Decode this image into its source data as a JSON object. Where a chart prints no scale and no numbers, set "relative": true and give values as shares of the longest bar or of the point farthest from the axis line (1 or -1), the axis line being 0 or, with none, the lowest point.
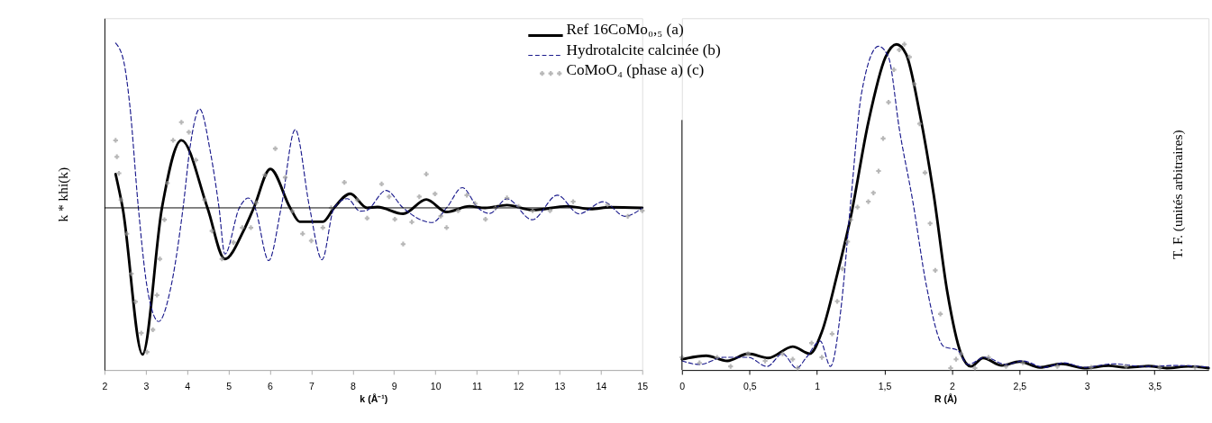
{
  "chart_data": [
    {
      "type": "line",
      "relative": true,
      "xlabel": "k (Å⁻¹)",
      "ylabel": "k * khi(k)",
      "xlim": [
        2,
        15
      ],
      "xticks": [
        2,
        3,
        4,
        5,
        6,
        7,
        8,
        9,
        10,
        11,
        12,
        13,
        14,
        15
      ],
      "tick_labels": "x",
      "grid": false,
      "legend": "top right",
      "ref_lines": [
        {
          "axis": "y",
          "value": 0,
          "color": "#000000"
        }
      ],
      "series": [
        {
          "name": "Ref 16CoMo₀,₅ (a)",
          "color": "#000000",
          "line_style": "solid",
          "x": [
            2.27,
            2.44,
            2.92,
            3.39,
            3.86,
            4.49,
            4.91,
            5.36,
            5.61,
            6.01,
            6.49,
            6.72,
            7.28,
            7.55,
            7.94,
            8.35,
            8.6,
            9.22,
            9.78,
            10.27,
            10.82,
            11.2,
            11.73,
            12.35,
            13.19,
            13.75,
            14.23,
            15.0
          ],
          "values": [
            0.205,
            0,
            -0.89,
            0,
            0.41,
            0,
            -0.31,
            -0.14,
            0,
            0.236,
            0,
            -0.084,
            -0.084,
            0,
            0.086,
            0,
            0.005,
            -0.036,
            0.051,
            -0.025,
            0.01,
            0,
            0.017,
            -0.013,
            0.01,
            -0.007,
            0.004,
            0
          ]
        },
        {
          "name": "Hydrotalcite calcinée (b)",
          "color": "#1a1a8c",
          "line_style": "dashed",
          "x": [
            2.27,
            2.47,
            2.61,
            2.82,
            3.03,
            3.31,
            3.59,
            3.9,
            4.07,
            4.3,
            4.56,
            4.77,
            4.91,
            5.26,
            5.48,
            5.64,
            5.97,
            6.27,
            6.61,
            6.96,
            7.26,
            7.55,
            7.87,
            8.18,
            8.32,
            8.81,
            9.22,
            9.92,
            10.27,
            10.65,
            11.03,
            11.31,
            11.73,
            12.34,
            12.95,
            13.47,
            14.06,
            14.58,
            15.0
          ],
          "values": [
            1.0,
            0.885,
            0.63,
            0,
            -0.48,
            -0.69,
            -0.5,
            0,
            0.37,
            0.6,
            0.34,
            0,
            -0.28,
            0,
            0.06,
            0,
            -0.32,
            0,
            0.475,
            0,
            -0.315,
            0,
            0.056,
            -0.02,
            -0.017,
            0.106,
            0,
            -0.089,
            0,
            0.123,
            0,
            -0.034,
            0.055,
            -0.072,
            0.077,
            -0.036,
            0.037,
            -0.051,
            0
          ]
        },
        {
          "name": "CoMoO₄ (phase a) (c)",
          "color": "#999999",
          "type": "scatter",
          "marker": "cross",
          "x": [
            2.27,
            2.3,
            2.35,
            2.4,
            2.54,
            2.65,
            2.75,
            2.89,
            3.03,
            3.17,
            3.27,
            3.34,
            3.45,
            3.52,
            3.66,
            3.86,
            4.04,
            4.21,
            4.42,
            4.6,
            4.84,
            5.12,
            5.33,
            5.54,
            5.67,
            5.88,
            6.13,
            6.37,
            6.54,
            6.79,
            7.0,
            7.28,
            7.48,
            7.8,
            8.11,
            8.35,
            8.7,
            8.88,
            9.02,
            9.22,
            9.43,
            9.61,
            9.78,
            9.99,
            10.13,
            10.27,
            10.55,
            10.76,
            10.96,
            11.21,
            11.45,
            11.73,
            12.01,
            12.35,
            12.77,
            13.33,
            13.75,
            14.16,
            14.65,
            15.0
          ],
          "values": [
            0.41,
            0.31,
            0.21,
            0.048,
            -0.157,
            -0.4,
            -0.57,
            -0.76,
            -0.875,
            -0.74,
            -0.53,
            -0.31,
            -0.072,
            0.15,
            0.41,
            0.52,
            0.46,
            0.29,
            0.048,
            -0.14,
            -0.31,
            -0.21,
            -0.12,
            -0.12,
            0.031,
            0.2,
            0.36,
            0.185,
            -0.02,
            -0.157,
            -0.2,
            -0.12,
            0,
            0.155,
            0.048,
            -0.063,
            0.145,
            0.068,
            -0.069,
            -0.22,
            -0.086,
            0.068,
            0.205,
            0.085,
            -0.05,
            -0.12,
            -0.017,
            0.077,
            0.026,
            -0.069,
            0,
            0.06,
            0.009,
            -0.017,
            -0.017,
            0.038,
            null,
            0.017,
            -0.051,
            -0.017
          ]
        }
      ]
    },
    {
      "type": "line",
      "relative": true,
      "xlabel": "R (Å)",
      "ylabel": "T. F. (unités arbitraires)",
      "xlim": [
        0,
        3.9
      ],
      "xticks": [
        0,
        {
          "value": 0.5,
          "label": "0,5"
        },
        1,
        {
          "value": 1.5,
          "label": "1,5"
        },
        2,
        {
          "value": 2.5,
          "label": "2,5"
        },
        3,
        {
          "value": 3.5,
          "label": "3,5"
        }
      ],
      "tick_labels": "x",
      "grid": false,
      "series": [
        {
          "color": "#000000",
          "line_style": "solid",
          "x": [
            0,
            0.18,
            0.336,
            0.49,
            0.64,
            0.82,
            0.947,
            1.036,
            1.15,
            1.25,
            1.38,
            1.507,
            1.589,
            1.66,
            1.76,
            1.864,
            1.965,
            2.067,
            2.14,
            2.23,
            2.37,
            2.5,
            2.65,
            2.81,
            2.98,
            3.16,
            3.29,
            3.455,
            3.59,
            3.75,
            3.9
          ],
          "values": [
            0.033,
            0.044,
            0.028,
            0.05,
            0.037,
            0.072,
            0.05,
            0.117,
            0.294,
            0.47,
            0.76,
            0.96,
            1.0,
            0.97,
            0.79,
            0.54,
            0.24,
            0.05,
            0.011,
            0.037,
            0.014,
            0.026,
            0.008,
            0.019,
            0.006,
            0.013,
            0.008,
            0.012,
            0.006,
            0.011,
            0.006
          ]
        },
        {
          "color": "#1a1a8c",
          "line_style": "dashed",
          "x": [
            0,
            0.13,
            0.31,
            0.49,
            0.63,
            0.745,
            0.85,
            0.922,
            1.024,
            1.1,
            1.176,
            1.25,
            1.33,
            1.456,
            1.53,
            1.61,
            1.71,
            1.81,
            1.94,
            2.04,
            2.118,
            2.245,
            2.4,
            2.525,
            2.68,
            2.83,
            2.98,
            3.19,
            3.42,
            3.67,
            3.9
          ],
          "values": [
            0.028,
            0.017,
            0.039,
            0.039,
            0.011,
            0.05,
            0.006,
            0.039,
            0.089,
            0.011,
            0.183,
            0.517,
            0.85,
            0.994,
            0.96,
            0.74,
            0.517,
            0.26,
            0.072,
            0.061,
            0.017,
            0.039,
            0.017,
            0.028,
            0.008,
            0.022,
            0.008,
            0.019,
            0.011,
            0.014,
            0.009
          ]
        },
        {
          "color": "#999999",
          "type": "scatter",
          "marker": "cross",
          "x": [
            0,
            0.13,
            0.26,
            0.36,
            0.49,
            0.616,
            0.745,
            0.82,
            0.857,
            0.96,
            1.036,
            1.112,
            1.15,
            1.188,
            1.227,
            1.25,
            1.3,
            1.38,
            1.418,
            1.456,
            1.49,
            1.53,
            1.57,
            1.609,
            1.647,
            1.685,
            1.72,
            1.76,
            1.8,
            1.838,
            1.876,
            1.914,
            1.99,
            2.03,
            2.067,
            2.17,
            2.27,
            2.4,
            2.525,
            2.78,
            3.03,
            3.29,
            3.54,
            3.8
          ],
          "values": [
            0.039,
            0.022,
            0.039,
            0.011,
            0.05,
            0.028,
            0.05,
            0.033,
            0.006,
            0.083,
            0.039,
            0.111,
            0.211,
            0.311,
            0.394,
            0.461,
            0.5,
            0.517,
            0.544,
            0.611,
            0.711,
            0.822,
            0.922,
            0.983,
            1.0,
            0.961,
            0.878,
            0.756,
            0.606,
            0.45,
            0.306,
            0.172,
            0.006,
            0.033,
            0.05,
            0.006,
            0.039,
            0.011,
            0.022,
            0.011,
            0.008,
            0.011,
            0.008,
            0.008
          ]
        }
      ]
    }
  ]
}
